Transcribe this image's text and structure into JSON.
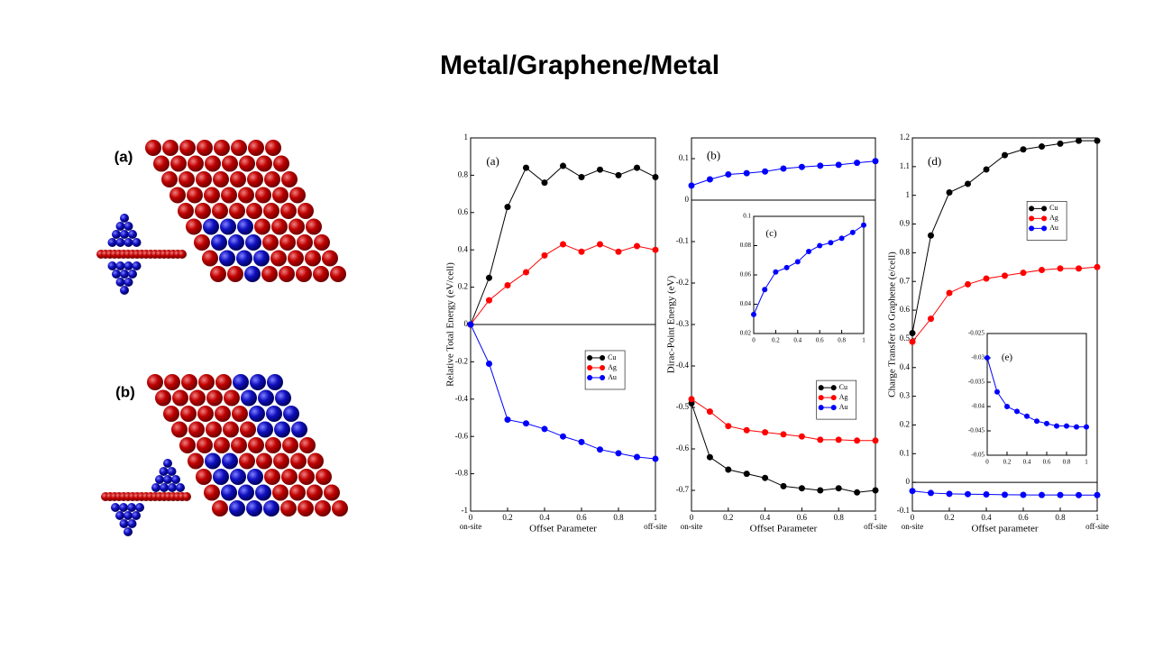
{
  "title": "Metal/Graphene/Metal",
  "structure_labels": [
    "(a)",
    "(b)"
  ],
  "chart_data": [
    {
      "type": "line",
      "panel_label": "(a)",
      "xlabel": "Offset Parameter",
      "ylabel": "Relative Total Energy (eV/cell)",
      "x": [
        0,
        0.1,
        0.2,
        0.3,
        0.4,
        0.5,
        0.6,
        0.7,
        0.8,
        0.9,
        1
      ],
      "xlim": [
        0,
        1
      ],
      "xticks": [
        0,
        0.2,
        0.4,
        0.6,
        0.8,
        1
      ],
      "x_end_labels": [
        "on-site",
        "off-site"
      ],
      "ylim": [
        -1,
        1
      ],
      "yticks": [
        -1,
        -0.8,
        -0.6,
        -0.4,
        -0.2,
        0,
        0.2,
        0.4,
        0.6,
        0.8,
        1
      ],
      "zero_line": true,
      "legend": "center right",
      "series": [
        {
          "name": "Cu",
          "color": "#000000",
          "values": [
            0,
            0.25,
            0.63,
            0.84,
            0.76,
            0.85,
            0.79,
            0.83,
            0.8,
            0.84,
            0.79
          ]
        },
        {
          "name": "Ag",
          "color": "#ff0000",
          "values": [
            0,
            0.13,
            0.21,
            0.28,
            0.37,
            0.43,
            0.39,
            0.43,
            0.39,
            0.42,
            0.4
          ]
        },
        {
          "name": "Au",
          "color": "#0000ff",
          "values": [
            0,
            -0.21,
            -0.51,
            -0.53,
            -0.56,
            -0.6,
            -0.63,
            -0.67,
            -0.69,
            -0.71,
            -0.72
          ]
        }
      ]
    },
    {
      "type": "line",
      "panel_label": "(b)",
      "xlabel": "Offset Parameter",
      "ylabel": "Dirac-Point Energy (eV)",
      "x": [
        0,
        0.1,
        0.2,
        0.3,
        0.4,
        0.5,
        0.6,
        0.7,
        0.8,
        0.9,
        1
      ],
      "xlim": [
        0,
        1
      ],
      "xticks": [
        0,
        0.2,
        0.4,
        0.6,
        0.8,
        1
      ],
      "x_end_labels": [
        "on-site",
        "off-site"
      ],
      "ylim": [
        -0.75,
        0.15
      ],
      "yticks": [
        -0.7,
        -0.6,
        -0.5,
        -0.4,
        -0.3,
        -0.2,
        -0.1,
        0,
        0.1
      ],
      "zero_line": true,
      "legend": "lower right",
      "series": [
        {
          "name": "Cu",
          "color": "#000000",
          "values": [
            -0.49,
            -0.62,
            -0.65,
            -0.66,
            -0.67,
            -0.69,
            -0.695,
            -0.7,
            -0.695,
            -0.705,
            -0.7
          ]
        },
        {
          "name": "Ag",
          "color": "#ff0000",
          "values": [
            -0.48,
            -0.51,
            -0.545,
            -0.555,
            -0.56,
            -0.565,
            -0.57,
            -0.578,
            -0.578,
            -0.58,
            -0.58
          ]
        },
        {
          "name": "Au",
          "color": "#0000ff",
          "values": [
            0.035,
            0.05,
            0.062,
            0.065,
            0.069,
            0.076,
            0.08,
            0.083,
            0.085,
            0.09,
            0.094
          ]
        }
      ],
      "inset": {
        "type": "line",
        "panel_label": "(c)",
        "x": [
          0,
          0.1,
          0.2,
          0.3,
          0.4,
          0.5,
          0.6,
          0.7,
          0.8,
          0.9,
          1
        ],
        "xlim": [
          0,
          1
        ],
        "xticks": [
          0,
          0.2,
          0.4,
          0.6,
          0.8,
          1
        ],
        "ylim": [
          0.02,
          0.1
        ],
        "yticks": [
          0.02,
          0.04,
          0.06,
          0.08,
          0.1
        ],
        "series": [
          {
            "color": "#0000ff",
            "values": [
              0.033,
              0.05,
              0.062,
              0.065,
              0.069,
              0.076,
              0.08,
              0.082,
              0.085,
              0.089,
              0.094
            ]
          }
        ]
      }
    },
    {
      "type": "line",
      "panel_label": "(d)",
      "xlabel": "Offset parameter",
      "ylabel": "Charge Transfer to Graphene (e/cell)",
      "x": [
        0,
        0.1,
        0.2,
        0.3,
        0.4,
        0.5,
        0.6,
        0.7,
        0.8,
        0.9,
        1
      ],
      "xlim": [
        0,
        1
      ],
      "xticks": [
        0,
        0.2,
        0.4,
        0.6,
        0.8,
        1
      ],
      "x_end_labels": [
        "on-site",
        "off-site"
      ],
      "ylim": [
        -0.1,
        1.2
      ],
      "yticks": [
        -0.1,
        0,
        0.1,
        0.2,
        0.3,
        0.4,
        0.5,
        0.6,
        0.7,
        0.8,
        0.9,
        1,
        1.1,
        1.2
      ],
      "zero_line": true,
      "legend": "upper center",
      "series": [
        {
          "name": "Cu",
          "color": "#000000",
          "values": [
            0.52,
            0.86,
            1.01,
            1.04,
            1.09,
            1.14,
            1.16,
            1.17,
            1.18,
            1.19,
            1.19
          ]
        },
        {
          "name": "Ag",
          "color": "#ff0000",
          "values": [
            0.49,
            0.57,
            0.66,
            0.69,
            0.71,
            0.72,
            0.73,
            0.74,
            0.745,
            0.745,
            0.75
          ]
        },
        {
          "name": "Au",
          "color": "#0000ff",
          "values": [
            -0.03,
            -0.037,
            -0.04,
            -0.041,
            -0.042,
            -0.043,
            -0.0435,
            -0.044,
            -0.044,
            -0.0442,
            -0.0442
          ]
        }
      ],
      "inset": {
        "type": "line",
        "panel_label": "(e)",
        "x": [
          0,
          0.1,
          0.2,
          0.3,
          0.4,
          0.5,
          0.6,
          0.7,
          0.8,
          0.9,
          1
        ],
        "xlim": [
          0,
          1
        ],
        "xticks": [
          0,
          0.2,
          0.4,
          0.6,
          0.8,
          1
        ],
        "ylim": [
          -0.05,
          -0.025
        ],
        "yticks": [
          -0.05,
          -0.045,
          -0.04,
          -0.035,
          -0.03,
          -0.025
        ],
        "series": [
          {
            "color": "#0000ff",
            "values": [
              -0.03,
              -0.037,
              -0.04,
              -0.041,
              -0.042,
              -0.043,
              -0.0435,
              -0.044,
              -0.044,
              -0.0442,
              -0.0442
            ]
          }
        ]
      }
    }
  ]
}
